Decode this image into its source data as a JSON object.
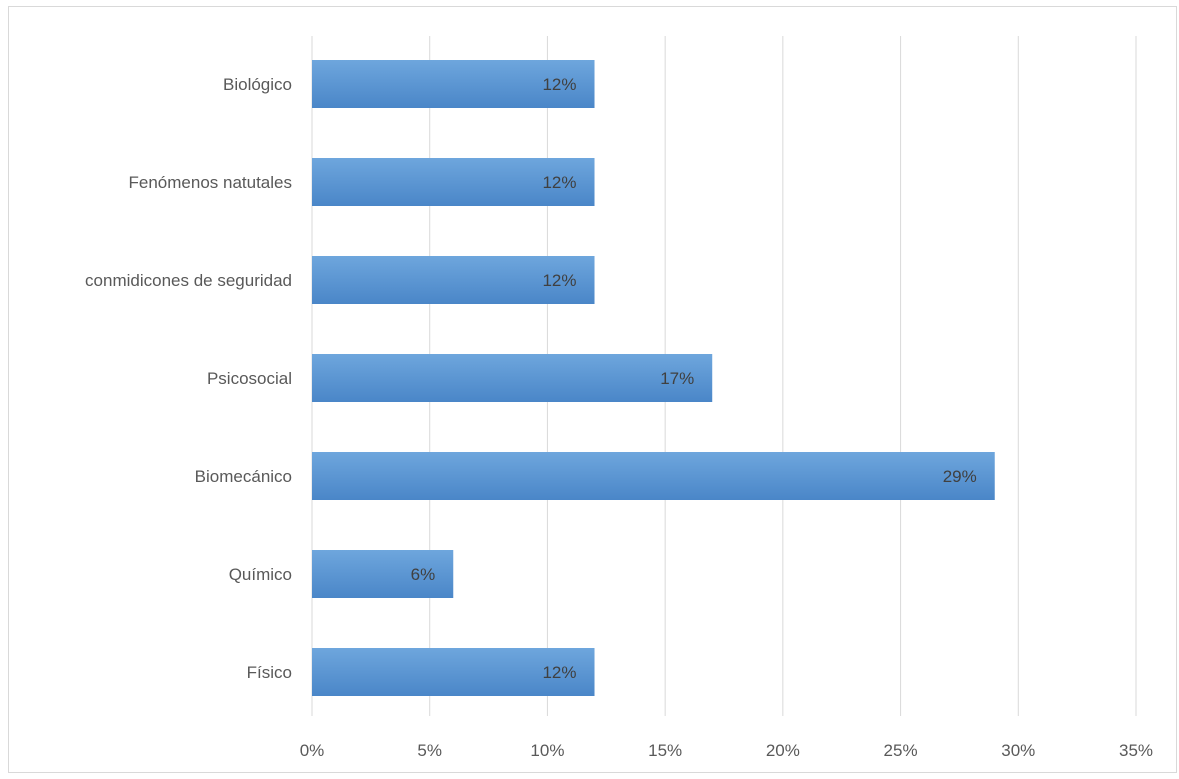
{
  "colors": {
    "bar_top": "#6ea6dd",
    "bar_bottom": "#4a86c8",
    "grid": "#d9d9d9",
    "text": "#595959"
  },
  "chart_data": {
    "type": "bar",
    "orientation": "horizontal",
    "categories": [
      "Biológico",
      "Fenómenos natutales",
      "conmidicones de seguridad",
      "Psicosocial",
      "Biomecánico",
      "Químico",
      "Físico"
    ],
    "values": [
      12,
      12,
      12,
      17,
      29,
      6,
      12
    ],
    "data_labels": [
      "12%",
      "12%",
      "12%",
      "17%",
      "29%",
      "6%",
      "12%"
    ],
    "x_ticks": [
      "0%",
      "5%",
      "10%",
      "15%",
      "20%",
      "25%",
      "30%",
      "35%"
    ],
    "xlim": [
      0,
      35
    ],
    "grid": true,
    "title": "",
    "xlabel": "",
    "ylabel": ""
  }
}
